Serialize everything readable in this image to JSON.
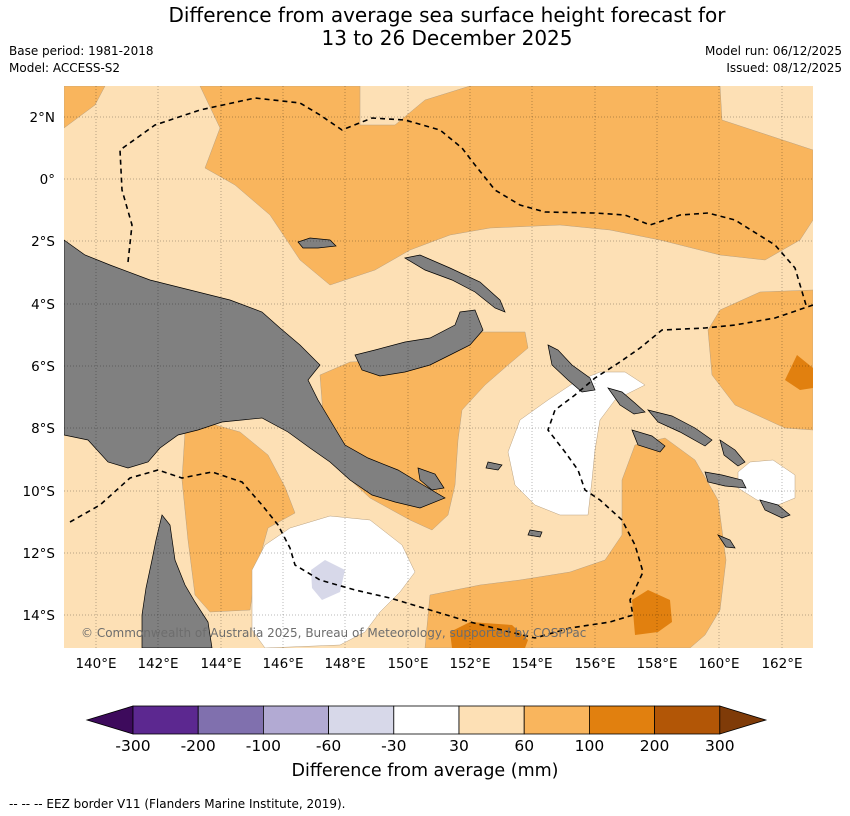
{
  "header": {
    "title_line1": "Difference from average sea surface height forecast for",
    "title_line2": "13 to 26 December 2025",
    "base_period": "Base period: 1981-2018",
    "model": "Model: ACCESS-S2",
    "model_run": "Model run: 06/12/2025",
    "issued": "Issued: 08/12/2025"
  },
  "map": {
    "lat_labels": [
      "2°N",
      "0°",
      "2°S",
      "4°S",
      "6°S",
      "8°S",
      "10°S",
      "12°S",
      "14°S"
    ],
    "lon_labels": [
      "140°E",
      "142°E",
      "144°E",
      "146°E",
      "148°E",
      "150°E",
      "152°E",
      "154°E",
      "156°E",
      "158°E",
      "160°E",
      "162°E"
    ],
    "copyright": "© Commonwealth of Australia 2025, Bureau of Meteorology, supported by COSPPac",
    "colors": {
      "land": "#808080",
      "ocean_30_60": "#fde0b5",
      "ocean_60_100": "#f9b55d",
      "ocean_100_200": "#e1800f",
      "ocean_m60_m30": "#d7d8e9",
      "ocean_m30_30": "#ffffff"
    }
  },
  "colorbar": {
    "ticks": [
      "-300",
      "-200",
      "-100",
      "-60",
      "-30",
      "30",
      "60",
      "100",
      "200",
      "300"
    ],
    "colors": [
      "#3d0a5c",
      "#5c2890",
      "#8070ae",
      "#b2aad3",
      "#d7d8e9",
      "#ffffff",
      "#fde0b5",
      "#f9b55d",
      "#e1800f",
      "#b25606",
      "#7f3b08"
    ],
    "label": "Difference from average (mm)"
  },
  "footnote": "--  --  -- EEZ border V11 (Flanders Marine Institute, 2019)."
}
